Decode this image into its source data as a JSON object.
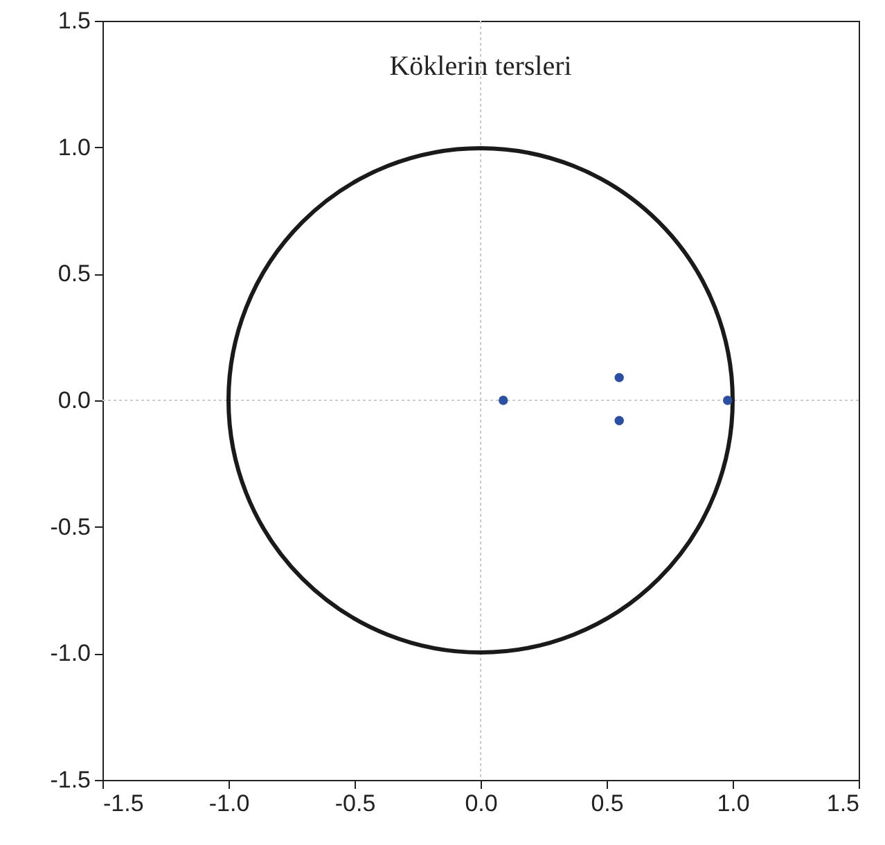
{
  "chart_data": {
    "type": "scatter",
    "title": "Köklerin tersleri",
    "xlim": [
      -1.5,
      1.5
    ],
    "ylim": [
      -1.5,
      1.5
    ],
    "xticks": [
      {
        "value": -1.5,
        "label": "-1.5"
      },
      {
        "value": -1,
        "label": "-1.0"
      },
      {
        "value": -0.5,
        "label": "-0.5"
      },
      {
        "value": 0,
        "label": "0.0"
      },
      {
        "value": 0.5,
        "label": "0.5"
      },
      {
        "value": 1,
        "label": "1.0"
      },
      {
        "value": 1.5,
        "label": "1.5"
      }
    ],
    "yticks": [
      {
        "value": -1.5,
        "label": "-1.5"
      },
      {
        "value": -1,
        "label": "-1.0"
      },
      {
        "value": -0.5,
        "label": "-0.5"
      },
      {
        "value": 0,
        "label": "0.0"
      },
      {
        "value": 0.5,
        "label": "0.5"
      },
      {
        "value": 1,
        "label": "1.0"
      },
      {
        "value": 1.5,
        "label": "1.5"
      }
    ],
    "grid": false,
    "ref_lines": [
      {
        "axis": "x",
        "value": 0,
        "color": "#cccccc",
        "line_style": "dotted"
      },
      {
        "axis": "y",
        "value": 0,
        "color": "#cccccc",
        "line_style": "dotted"
      }
    ],
    "series": [
      {
        "color": "#2b4fa3",
        "marker": "circle",
        "x": [
          0.09,
          0.55,
          0.55,
          0.98
        ],
        "values": [
          0,
          0.09,
          -0.08,
          0
        ]
      }
    ]
  }
}
